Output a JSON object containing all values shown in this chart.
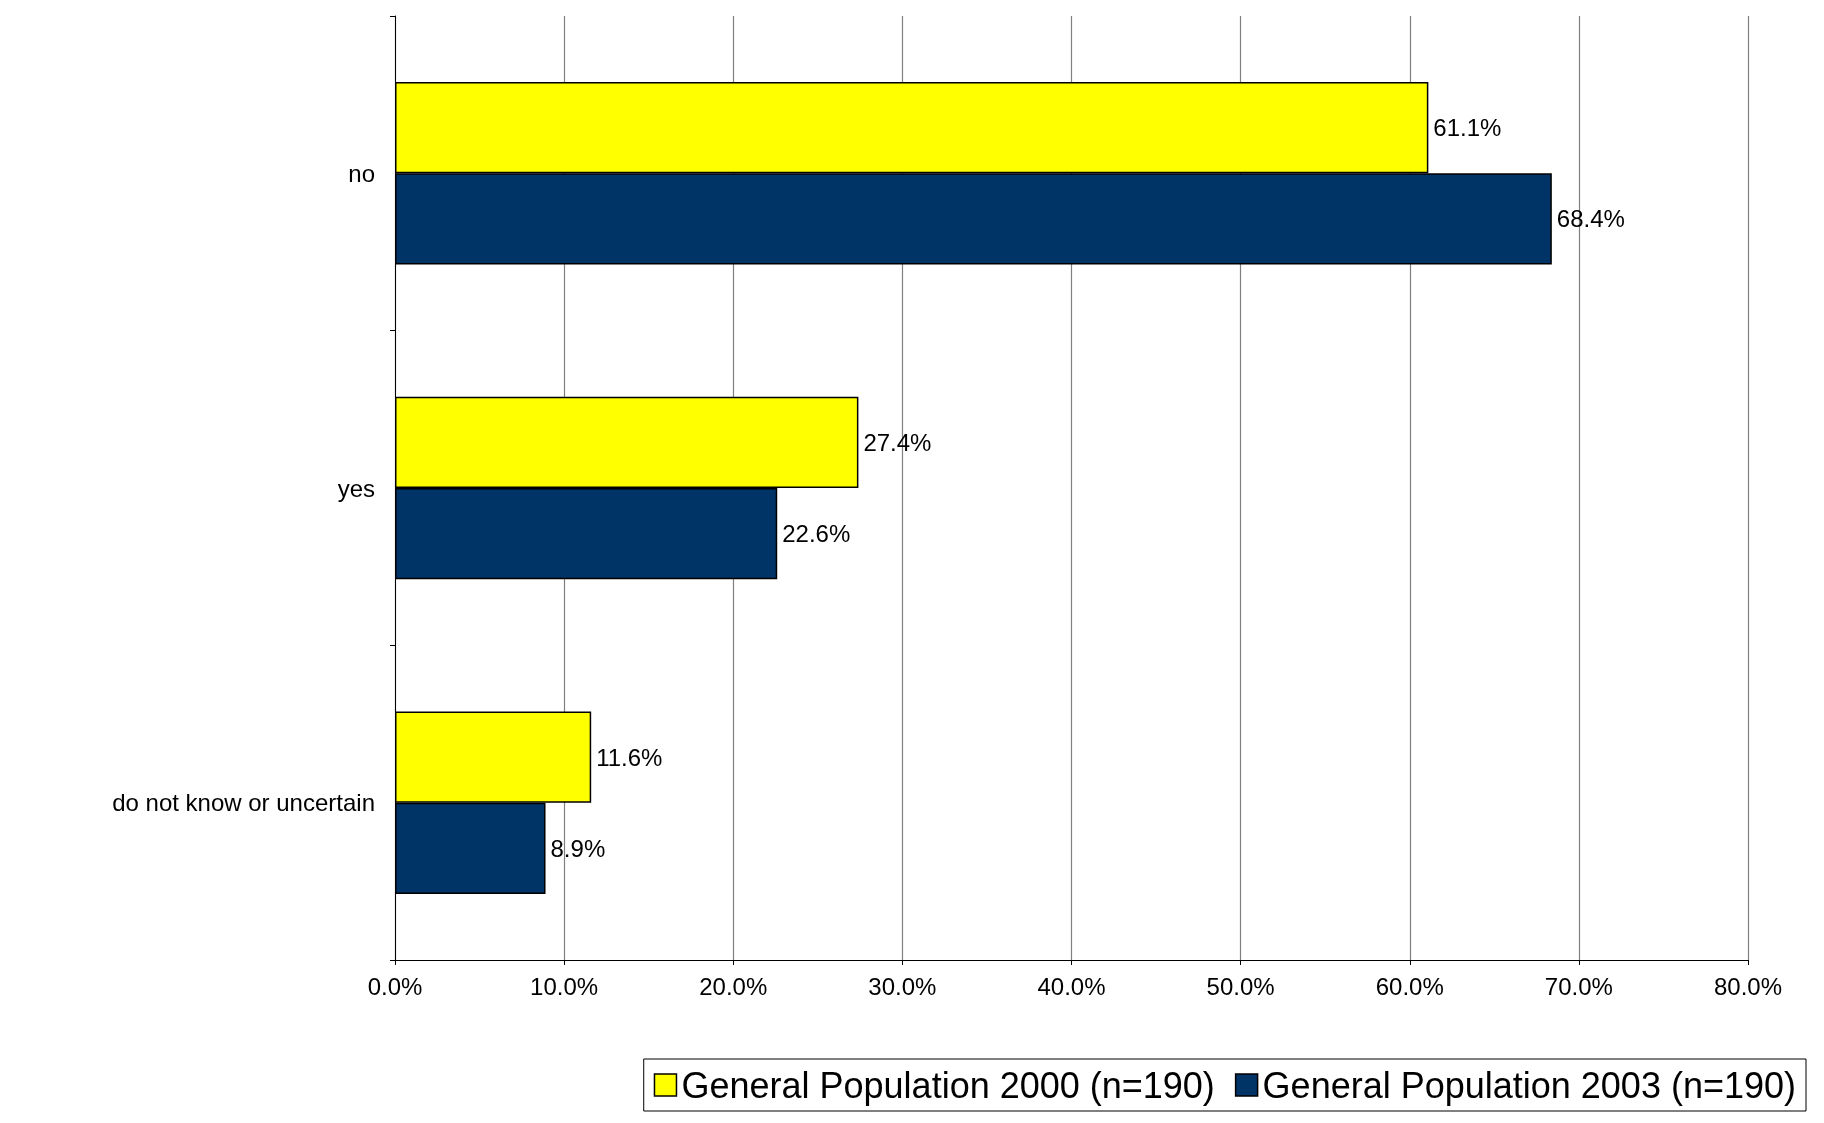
{
  "chart_data": {
    "type": "bar",
    "orientation": "horizontal",
    "categories": [
      "no",
      "yes",
      "do not know or uncertain"
    ],
    "series": [
      {
        "name": "General Population 2000 (n=190)",
        "color": "#ffff00",
        "values": [
          61.1,
          27.4,
          11.6
        ],
        "value_labels": [
          "61.1%",
          "27.4%",
          "11.6%"
        ]
      },
      {
        "name": "General Population 2003 (n=190)",
        "color": "#003366",
        "values": [
          68.4,
          22.6,
          8.9
        ],
        "value_labels": [
          "68.4%",
          "22.6%",
          "8.9%"
        ]
      }
    ],
    "xlim": [
      0,
      80
    ],
    "xticks": [
      {
        "value": 0,
        "label": "0.0%"
      },
      {
        "value": 10,
        "label": "10.0%"
      },
      {
        "value": 20,
        "label": "20.0%"
      },
      {
        "value": 30,
        "label": "30.0%"
      },
      {
        "value": 40,
        "label": "40.0%"
      },
      {
        "value": 50,
        "label": "50.0%"
      },
      {
        "value": 60,
        "label": "60.0%"
      },
      {
        "value": 70,
        "label": "70.0%"
      },
      {
        "value": 80,
        "label": "80.0%"
      }
    ],
    "grid": "x",
    "legend": "bottom right"
  }
}
